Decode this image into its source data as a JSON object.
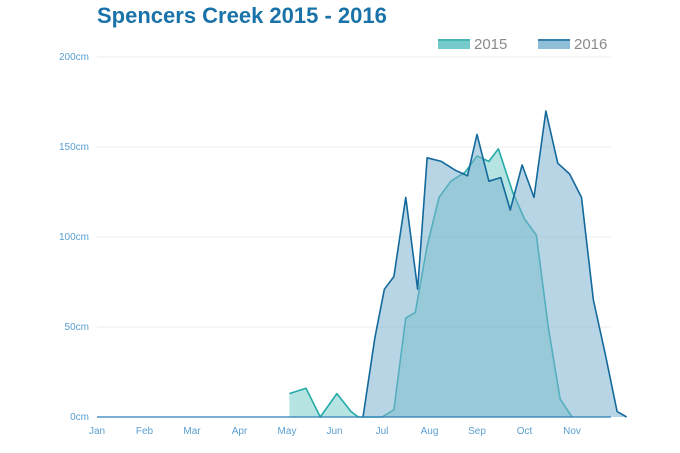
{
  "chart_data": {
    "type": "area",
    "title": "Spencers Creek 2015 - 2016",
    "xlabel": "",
    "ylabel": "",
    "ylim": [
      0,
      200
    ],
    "y_ticks": [
      "0cm",
      "50cm",
      "100cm",
      "150cm",
      "200cm"
    ],
    "y_tick_values": [
      0,
      50,
      100,
      150,
      200
    ],
    "x_range": [
      0,
      11.3
    ],
    "categories": [
      "Jan",
      "Feb",
      "Mar",
      "Apr",
      "May",
      "Jun",
      "Jul",
      "Aug",
      "Sep",
      "Oct",
      "Nov"
    ],
    "grid": true,
    "legend_position": "top-right",
    "series": [
      {
        "name": "2015",
        "color": "#25aaa8",
        "fill": "#5cc3c0",
        "points": [
          [
            4.05,
            13
          ],
          [
            4.4,
            16
          ],
          [
            4.7,
            0
          ],
          [
            5.05,
            13
          ],
          [
            5.35,
            3
          ],
          [
            5.5,
            0
          ],
          [
            6.0,
            0
          ],
          [
            6.25,
            4
          ],
          [
            6.5,
            55
          ],
          [
            6.7,
            58
          ],
          [
            6.95,
            95
          ],
          [
            7.2,
            122
          ],
          [
            7.45,
            131
          ],
          [
            7.75,
            136
          ],
          [
            8.0,
            145
          ],
          [
            8.25,
            142
          ],
          [
            8.45,
            149
          ],
          [
            8.75,
            125
          ],
          [
            9.0,
            110
          ],
          [
            9.25,
            101
          ],
          [
            9.5,
            50
          ],
          [
            9.75,
            10
          ],
          [
            10.0,
            0
          ]
        ]
      },
      {
        "name": "2016",
        "color": "#13699b",
        "fill": "#7db3d0",
        "points": [
          [
            5.6,
            0
          ],
          [
            5.85,
            44
          ],
          [
            6.05,
            71
          ],
          [
            6.25,
            78
          ],
          [
            6.5,
            122
          ],
          [
            6.75,
            71
          ],
          [
            6.95,
            144
          ],
          [
            7.25,
            142
          ],
          [
            7.55,
            137
          ],
          [
            7.8,
            134
          ],
          [
            8.0,
            157
          ],
          [
            8.25,
            131
          ],
          [
            8.5,
            133
          ],
          [
            8.7,
            115
          ],
          [
            8.95,
            140
          ],
          [
            9.2,
            122
          ],
          [
            9.45,
            170
          ],
          [
            9.7,
            141
          ],
          [
            9.95,
            135
          ],
          [
            10.2,
            122
          ],
          [
            10.45,
            65
          ],
          [
            10.7,
            35
          ],
          [
            10.95,
            3
          ],
          [
            11.15,
            0
          ]
        ]
      }
    ]
  }
}
